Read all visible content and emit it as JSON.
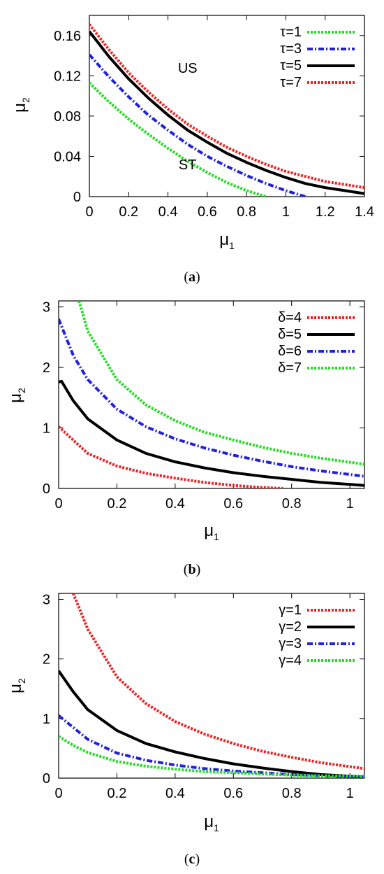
{
  "chart_data": [
    {
      "type": "line",
      "xlabel": "μ",
      "xlabel_sub": "1",
      "ylabel": "μ",
      "ylabel_sub": "2",
      "xlim": [
        0,
        1.4
      ],
      "ylim": [
        0,
        0.18
      ],
      "xticks": [
        "0",
        "0.2",
        "0.4",
        "0.6",
        "0.8",
        "1",
        "1.2",
        "1.4"
      ],
      "xtick_values": [
        0,
        0.2,
        0.4,
        0.6,
        0.8,
        1.0,
        1.2,
        1.4
      ],
      "yticks": [
        "0",
        "0.04",
        "0.08",
        "0.12",
        "0.16"
      ],
      "ytick_values": [
        0,
        0.04,
        0.08,
        0.12,
        0.16
      ],
      "grid": false,
      "legend": "top-right",
      "annotations": [
        {
          "text": "US",
          "x": 0.5,
          "y": 0.123
        },
        {
          "text": "ST",
          "x": 0.5,
          "y": 0.027
        }
      ],
      "caption": "(a)",
      "series": [
        {
          "name": "τ=1",
          "color": "#22dd22",
          "style": "dotted",
          "x": [
            0,
            0.1,
            0.2,
            0.3,
            0.4,
            0.5,
            0.6,
            0.7,
            0.8,
            0.9
          ],
          "y": [
            0.113,
            0.094,
            0.077,
            0.062,
            0.048,
            0.035,
            0.024,
            0.014,
            0.006,
            0.0
          ]
        },
        {
          "name": "τ=3",
          "color": "#2222dd",
          "style": "dashdot",
          "x": [
            0,
            0.1,
            0.2,
            0.3,
            0.4,
            0.5,
            0.6,
            0.7,
            0.8,
            0.9,
            1.0,
            1.1
          ],
          "y": [
            0.141,
            0.119,
            0.099,
            0.081,
            0.066,
            0.052,
            0.04,
            0.03,
            0.021,
            0.013,
            0.006,
            0.0
          ]
        },
        {
          "name": "τ=5",
          "color": "#000000",
          "style": "solid",
          "x": [
            0,
            0.1,
            0.2,
            0.3,
            0.4,
            0.5,
            0.6,
            0.7,
            0.8,
            0.9,
            1.0,
            1.1,
            1.2,
            1.3,
            1.4
          ],
          "y": [
            0.164,
            0.139,
            0.117,
            0.098,
            0.081,
            0.066,
            0.054,
            0.043,
            0.034,
            0.026,
            0.019,
            0.013,
            0.009,
            0.006,
            0.003
          ]
        },
        {
          "name": "τ=7",
          "color": "#ee2222",
          "style": "dotted",
          "x": [
            0,
            0.1,
            0.2,
            0.3,
            0.4,
            0.5,
            0.6,
            0.7,
            0.8,
            0.9,
            1.0,
            1.1,
            1.2,
            1.3,
            1.4
          ],
          "y": [
            0.171,
            0.146,
            0.123,
            0.104,
            0.087,
            0.072,
            0.06,
            0.049,
            0.04,
            0.032,
            0.025,
            0.02,
            0.015,
            0.012,
            0.009
          ]
        }
      ]
    },
    {
      "type": "line",
      "xlabel": "μ",
      "xlabel_sub": "1",
      "ylabel": "μ",
      "ylabel_sub": "2",
      "xlim": [
        0,
        1.05
      ],
      "ylim": [
        0,
        3.1
      ],
      "xticks": [
        "0",
        "0.2",
        "0.4",
        "0.6",
        "0.8",
        "1"
      ],
      "xtick_values": [
        0,
        0.2,
        0.4,
        0.6,
        0.8,
        1.0
      ],
      "yticks": [
        "0",
        "1",
        "2",
        "3"
      ],
      "ytick_values": [
        0,
        1,
        2,
        3
      ],
      "grid": false,
      "legend": "top-right",
      "caption": "(b)",
      "series": [
        {
          "name": "δ=4",
          "color": "#ee2222",
          "style": "dotted",
          "x": [
            0,
            0.1,
            0.2,
            0.3,
            0.4,
            0.5,
            0.6,
            0.7,
            0.77
          ],
          "y": [
            1.02,
            0.58,
            0.37,
            0.25,
            0.17,
            0.1,
            0.05,
            0.015,
            0.0
          ]
        },
        {
          "name": "δ=5",
          "color": "#000000",
          "style": "solid",
          "x": [
            0,
            0.01,
            0.05,
            0.1,
            0.2,
            0.3,
            0.4,
            0.5,
            0.6,
            0.7,
            0.8,
            0.9,
            1.05
          ],
          "y": [
            1.76,
            1.77,
            1.45,
            1.15,
            0.8,
            0.58,
            0.44,
            0.34,
            0.26,
            0.2,
            0.15,
            0.1,
            0.05
          ]
        },
        {
          "name": "δ=6",
          "color": "#2222dd",
          "style": "dashdot",
          "x": [
            0,
            0.05,
            0.1,
            0.2,
            0.3,
            0.4,
            0.5,
            0.6,
            0.7,
            0.8,
            0.9,
            1.05
          ],
          "y": [
            2.8,
            2.2,
            1.8,
            1.31,
            1.02,
            0.82,
            0.67,
            0.55,
            0.45,
            0.36,
            0.29,
            0.2
          ]
        },
        {
          "name": "δ=7",
          "color": "#22dd22",
          "style": "dotted",
          "x": [
            0.07,
            0.1,
            0.2,
            0.3,
            0.4,
            0.5,
            0.6,
            0.7,
            0.8,
            0.9,
            1.05
          ],
          "y": [
            3.1,
            2.6,
            1.8,
            1.38,
            1.12,
            0.93,
            0.8,
            0.68,
            0.58,
            0.5,
            0.4
          ]
        }
      ]
    },
    {
      "type": "line",
      "xlabel": "μ",
      "xlabel_sub": "1",
      "ylabel": "μ",
      "ylabel_sub": "2",
      "xlim": [
        0,
        1.05
      ],
      "ylim": [
        0,
        3.1
      ],
      "xticks": [
        "0",
        "0.2",
        "0.4",
        "0.6",
        "0.8",
        "1"
      ],
      "xtick_values": [
        0,
        0.2,
        0.4,
        0.6,
        0.8,
        1.0
      ],
      "yticks": [
        "0",
        "1",
        "2",
        "3"
      ],
      "ytick_values": [
        0,
        1,
        2,
        3
      ],
      "grid": false,
      "legend": "top-right",
      "caption": "(c)",
      "series": [
        {
          "name": "γ=1",
          "color": "#ee2222",
          "style": "dotted",
          "x": [
            0.05,
            0.1,
            0.2,
            0.3,
            0.4,
            0.5,
            0.6,
            0.7,
            0.8,
            0.9,
            1.05
          ],
          "y": [
            3.1,
            2.5,
            1.7,
            1.25,
            0.95,
            0.74,
            0.58,
            0.45,
            0.35,
            0.26,
            0.16
          ]
        },
        {
          "name": "γ=2",
          "color": "#000000",
          "style": "solid",
          "x": [
            0,
            0.05,
            0.1,
            0.2,
            0.3,
            0.4,
            0.5,
            0.6,
            0.7,
            0.8,
            0.9,
            1.05
          ],
          "y": [
            1.8,
            1.45,
            1.15,
            0.8,
            0.58,
            0.44,
            0.33,
            0.24,
            0.17,
            0.11,
            0.06,
            0.02
          ]
        },
        {
          "name": "γ=3",
          "color": "#2222dd",
          "style": "dashdot",
          "x": [
            0,
            0.05,
            0.1,
            0.2,
            0.3,
            0.4,
            0.5,
            0.6,
            0.7,
            0.8,
            0.9,
            1.05
          ],
          "y": [
            1.05,
            0.85,
            0.65,
            0.42,
            0.3,
            0.22,
            0.16,
            0.12,
            0.09,
            0.06,
            0.04,
            0.02
          ]
        },
        {
          "name": "γ=4",
          "color": "#22dd22",
          "style": "dotted",
          "x": [
            0,
            0.05,
            0.1,
            0.2,
            0.3,
            0.4,
            0.5,
            0.6,
            0.7,
            0.8,
            0.9,
            1.05
          ],
          "y": [
            0.7,
            0.55,
            0.43,
            0.28,
            0.2,
            0.15,
            0.11,
            0.09,
            0.07,
            0.05,
            0.04,
            0.03
          ]
        }
      ]
    }
  ]
}
